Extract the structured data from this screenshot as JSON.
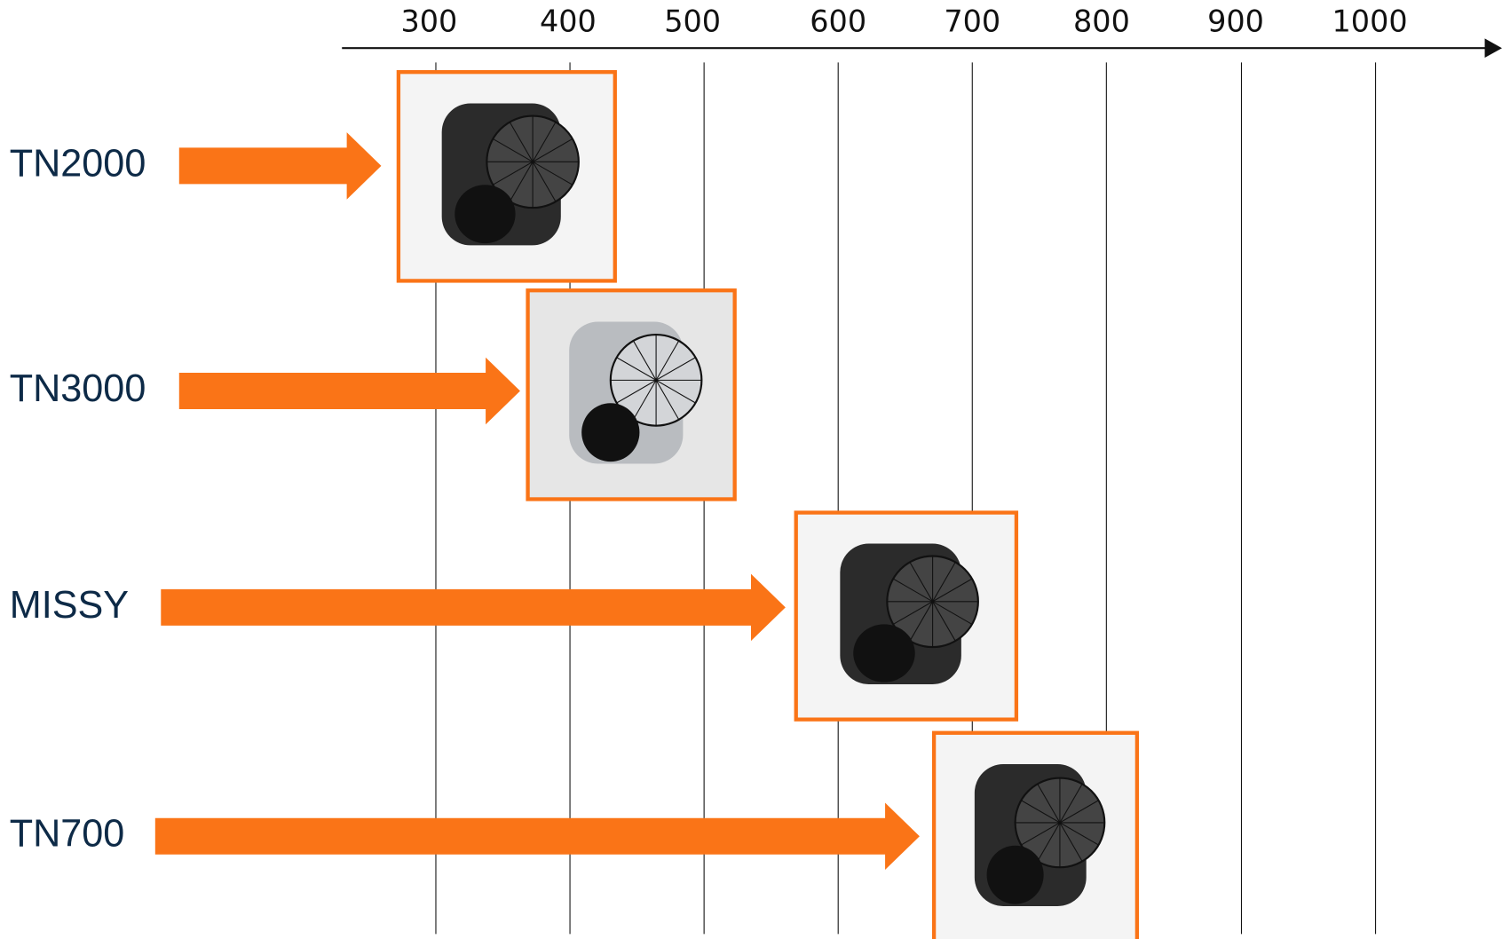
{
  "axis": {
    "ticks": [
      "300",
      "400",
      "500",
      "600",
      "700",
      "800",
      "900",
      "1000"
    ]
  },
  "rows": [
    {
      "label": "TN2000"
    },
    {
      "label": "TN3000"
    },
    {
      "label": "MISSY"
    },
    {
      "label": "TN700"
    }
  ]
}
